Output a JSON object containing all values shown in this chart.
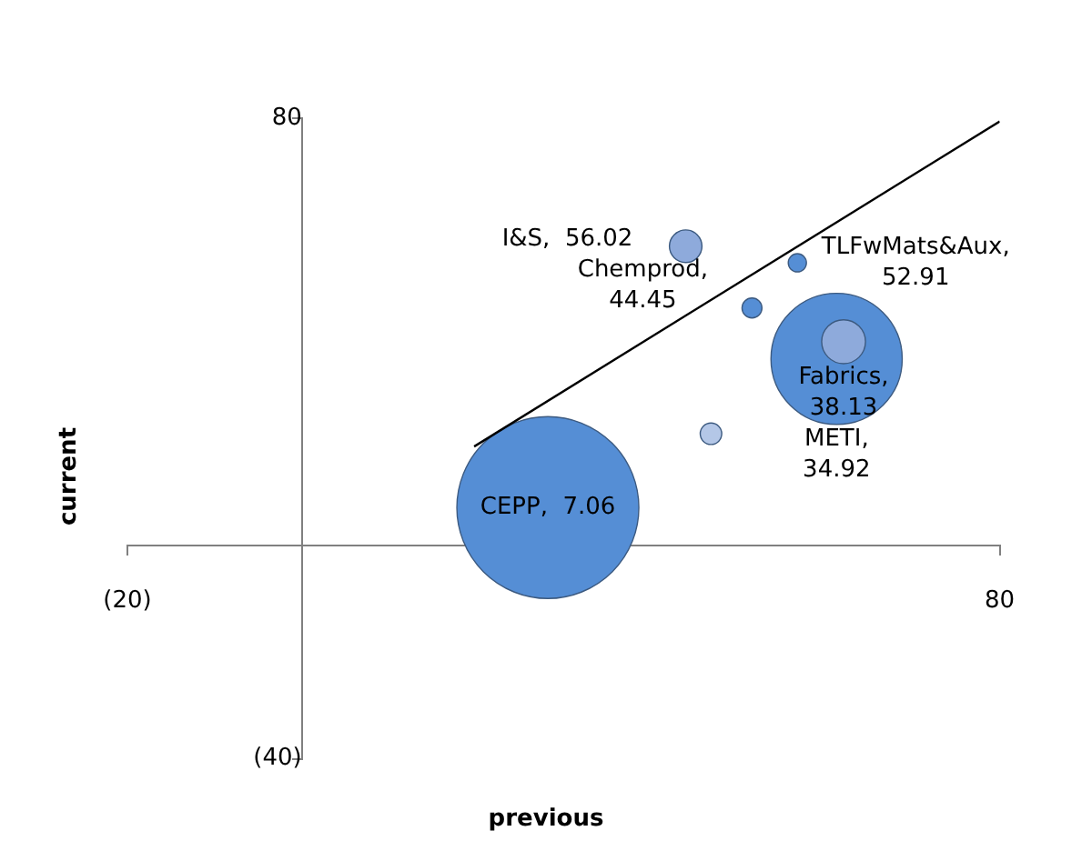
{
  "chart_data": {
    "type": "bubble",
    "xlabel": "previous",
    "ylabel": "current",
    "xlim": [
      -20,
      80
    ],
    "xticks": [
      {
        "value": -20,
        "label": "(20)"
      },
      80
    ],
    "ylim": [
      -40,
      80
    ],
    "yticks": [
      {
        "value": -40,
        "label": "(40)"
      },
      80
    ],
    "grid": false,
    "legend": false,
    "series": [
      {
        "color": "#558ed5",
        "x": [
          28.2
        ],
        "values": [
          7.06
        ],
        "sizes": [
          1
        ],
        "value_labels": [
          "CEPP,  7.06"
        ]
      },
      {
        "color": "#558ed5",
        "x": [
          61.3
        ],
        "values": [
          34.92
        ],
        "sizes": [
          0.52
        ],
        "value_labels": [
          "METI,  34.92"
        ]
      },
      {
        "color": "#8eaadb",
        "x": [
          62.1
        ],
        "values": [
          38.13
        ],
        "sizes": [
          0.058
        ],
        "value_labels": [
          "Fabrics,  38.13"
        ]
      },
      {
        "color": "#558ed5",
        "x": [
          51.6
        ],
        "values": [
          44.45
        ],
        "sizes": [
          0.012
        ],
        "value_labels": [
          "Chemprod,  44.45"
        ]
      },
      {
        "color": "#8eaadb",
        "x": [
          44.0
        ],
        "values": [
          56.02
        ],
        "sizes": [
          0.032
        ],
        "value_labels": [
          "I&S,  56.02"
        ]
      },
      {
        "color": "#558ed5",
        "x": [
          56.8
        ],
        "values": [
          52.91
        ],
        "sizes": [
          0.01
        ],
        "value_labels": [
          "TLFwMats&Aux,  52.91"
        ]
      },
      {
        "color": "#b4c7e7",
        "x": [
          46.9
        ],
        "values": [
          20.9
        ],
        "sizes": [
          0.014
        ],
        "value_labels": [
          null
        ]
      },
      {
        "type": "line",
        "color": "#000000",
        "marker": "none",
        "x": [
          19.75,
          80
        ],
        "values": [
          18.5,
          79.4
        ]
      }
    ]
  }
}
